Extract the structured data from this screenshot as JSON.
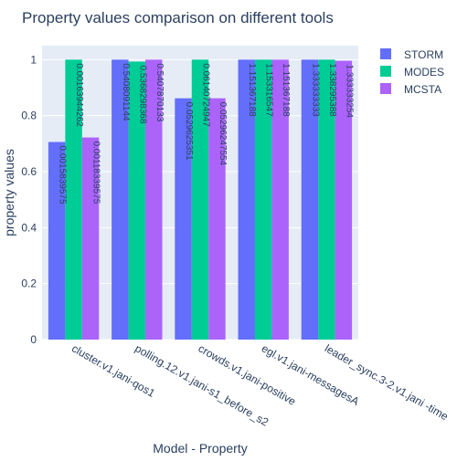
{
  "chart_data": {
    "type": "bar",
    "title": "Property values comparison on different tools",
    "xlabel": "Model - Property",
    "ylabel": "property values",
    "ylim": [
      0,
      1.05
    ],
    "yticks": [
      0,
      0.2,
      0.4,
      0.6,
      0.8,
      1
    ],
    "grid": true,
    "legend_position": "top-right",
    "colors": {
      "STORM": "#636efa",
      "MODES": "#00cc96",
      "MCSTA": "#ab63fa",
      "plot_bg": "#e5ecf6",
      "text": "#2a3f5f"
    },
    "categories": [
      "cluster.v1.jani-qos1",
      "polling.12.v1.jani-s1_before_s2",
      "crowds.v1.jani-positive",
      "egl.v1.jani-messagesA",
      "leader_sync.3-2.v1.jani -time"
    ],
    "series": [
      {
        "name": "STORM",
        "values": [
          0.7058,
          1.0,
          0.862,
          1.0,
          1.0
        ],
        "labels": [
          "0.0015839575",
          "0.5408091144",
          "0.0529625351",
          "1.151367188",
          "1.333333333"
        ]
      },
      {
        "name": "MODES",
        "values": [
          1.0,
          0.993,
          1.0,
          1.0,
          1.0
        ],
        "labels": [
          "0.00163944262",
          "0.5368298368",
          "0.06140724947",
          "1.153316547",
          "1.338295388"
        ]
      },
      {
        "name": "MCSTA",
        "values": [
          0.722,
          1.0,
          0.862,
          1.0,
          0.996
        ],
        "labels": [
          "0.00118339575",
          "0.5407870133",
          "0.05296247554",
          "1.151367188",
          "1.333333254"
        ]
      }
    ]
  }
}
